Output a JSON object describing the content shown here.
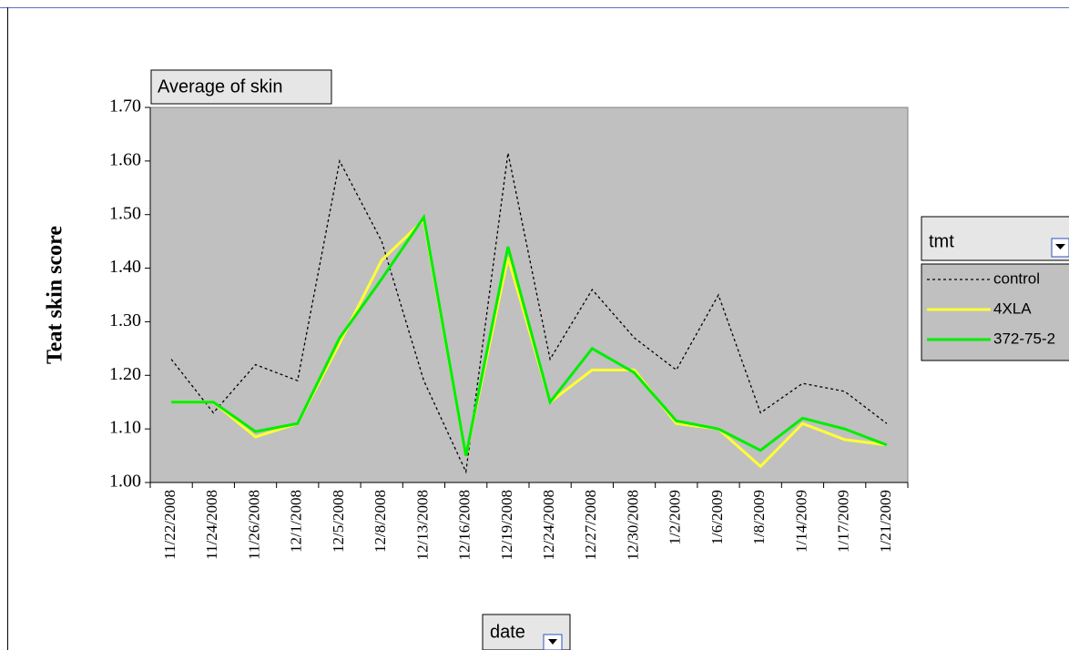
{
  "chart_data": {
    "type": "line",
    "data_field": "Average of skin",
    "y_label": "Teat skin score",
    "x_field": "date",
    "legend_title": "tmt",
    "legend": "right",
    "background": "#c0c0c0",
    "categories": [
      "11/22/2008",
      "11/24/2008",
      "11/26/2008",
      "12/1/2008",
      "12/5/2008",
      "12/8/2008",
      "12/13/2008",
      "12/16/2008",
      "12/19/2008",
      "12/24/2008",
      "12/27/2008",
      "12/30/2008",
      "1/2/2009",
      "1/6/2009",
      "1/8/2009",
      "1/14/2009",
      "1/17/2009",
      "1/21/2009"
    ],
    "series": [
      {
        "name": "control",
        "color": "#000000",
        "dashed": true,
        "values": [
          1.23,
          1.13,
          1.22,
          1.19,
          1.6,
          1.45,
          1.19,
          1.02,
          1.615,
          1.23,
          1.36,
          1.27,
          1.21,
          1.35,
          1.13,
          1.185,
          1.17,
          1.11
        ]
      },
      {
        "name": "4XLA",
        "color": "#ffff33",
        "dashed": false,
        "values": [
          1.15,
          1.15,
          1.085,
          1.11,
          1.26,
          1.415,
          1.49,
          1.05,
          1.42,
          1.15,
          1.21,
          1.21,
          1.11,
          1.1,
          1.03,
          1.11,
          1.08,
          1.07
        ]
      },
      {
        "name": "372-75-2",
        "color": "#00ee00",
        "dashed": false,
        "values": [
          1.15,
          1.15,
          1.095,
          1.11,
          1.27,
          1.38,
          1.495,
          1.05,
          1.44,
          1.15,
          1.25,
          1.205,
          1.115,
          1.1,
          1.06,
          1.12,
          1.1,
          1.07
        ]
      }
    ],
    "ylim": [
      1.0,
      1.7
    ],
    "yticks": [
      {
        "value": 1.0,
        "label": "1.00"
      },
      {
        "value": 1.1,
        "label": "1.10"
      },
      {
        "value": 1.2,
        "label": "1.20"
      },
      {
        "value": 1.3,
        "label": "1.30"
      },
      {
        "value": 1.4,
        "label": "1.40"
      },
      {
        "value": 1.5,
        "label": "1.50"
      },
      {
        "value": 1.6,
        "label": "1.60"
      },
      {
        "value": 1.7,
        "label": "1.70"
      }
    ]
  }
}
